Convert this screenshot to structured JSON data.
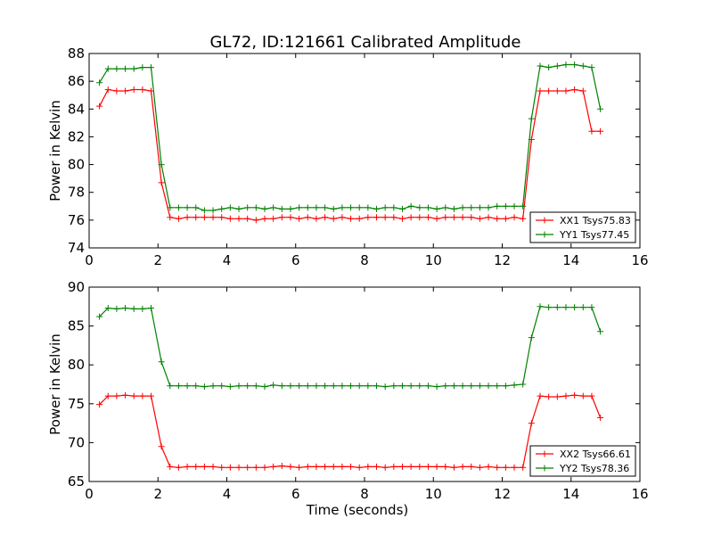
{
  "title": "GL72, ID:121661 Calibrated Amplitude",
  "colors": {
    "red": "#ff0000",
    "green": "#008000"
  },
  "chart_data": [
    {
      "type": "line",
      "title": "GL72, ID:121661 Calibrated Amplitude",
      "xlabel": "",
      "ylabel": "Power in Kelvin",
      "xlim": [
        0,
        16
      ],
      "ylim": [
        74,
        88
      ],
      "xticks": [
        0,
        2,
        4,
        6,
        8,
        10,
        12,
        14,
        16
      ],
      "yticks": [
        74,
        76,
        78,
        80,
        82,
        84,
        86,
        88
      ],
      "grid": false,
      "legend": "lower-right",
      "x": [
        0.3,
        0.55,
        0.8,
        1.05,
        1.3,
        1.55,
        1.8,
        2.1,
        2.35,
        2.6,
        2.85,
        3.1,
        3.35,
        3.6,
        3.85,
        4.1,
        4.35,
        4.6,
        4.85,
        5.1,
        5.35,
        5.6,
        5.85,
        6.1,
        6.35,
        6.6,
        6.85,
        7.1,
        7.35,
        7.6,
        7.85,
        8.1,
        8.35,
        8.6,
        8.85,
        9.1,
        9.35,
        9.6,
        9.85,
        10.1,
        10.35,
        10.6,
        10.85,
        11.1,
        11.35,
        11.6,
        11.85,
        12.1,
        12.35,
        12.6,
        12.85,
        13.1,
        13.35,
        13.6,
        13.85,
        14.1,
        14.35,
        14.6,
        14.85
      ],
      "series": [
        {
          "name": "XX1 Tsys75.83",
          "color": "#ff0000",
          "values": [
            84.2,
            85.4,
            85.3,
            85.3,
            85.4,
            85.4,
            85.3,
            78.7,
            76.2,
            76.1,
            76.2,
            76.2,
            76.2,
            76.2,
            76.2,
            76.1,
            76.1,
            76.1,
            76.0,
            76.1,
            76.1,
            76.2,
            76.2,
            76.1,
            76.2,
            76.1,
            76.2,
            76.1,
            76.2,
            76.1,
            76.1,
            76.2,
            76.2,
            76.2,
            76.2,
            76.1,
            76.2,
            76.2,
            76.2,
            76.1,
            76.2,
            76.2,
            76.2,
            76.2,
            76.1,
            76.2,
            76.1,
            76.1,
            76.2,
            76.1,
            81.8,
            85.3,
            85.3,
            85.3,
            85.3,
            85.4,
            85.3,
            82.4,
            82.4
          ]
        },
        {
          "name": "YY1 Tsys77.45",
          "color": "#008000",
          "values": [
            85.9,
            86.9,
            86.9,
            86.9,
            86.9,
            87.0,
            87.0,
            80.0,
            76.9,
            76.9,
            76.9,
            76.9,
            76.7,
            76.7,
            76.8,
            76.9,
            76.8,
            76.9,
            76.9,
            76.8,
            76.9,
            76.8,
            76.8,
            76.9,
            76.9,
            76.9,
            76.9,
            76.8,
            76.9,
            76.9,
            76.9,
            76.9,
            76.8,
            76.9,
            76.9,
            76.8,
            77.0,
            76.9,
            76.9,
            76.8,
            76.9,
            76.8,
            76.9,
            76.9,
            76.9,
            76.9,
            77.0,
            77.0,
            77.0,
            77.0,
            83.3,
            87.1,
            87.0,
            87.1,
            87.2,
            87.2,
            87.1,
            87.0,
            84.0
          ]
        }
      ]
    },
    {
      "type": "line",
      "title": "",
      "xlabel": "Time (seconds)",
      "ylabel": "Power in Kelvin",
      "xlim": [
        0,
        16
      ],
      "ylim": [
        65,
        90
      ],
      "xticks": [
        0,
        2,
        4,
        6,
        8,
        10,
        12,
        14,
        16
      ],
      "yticks": [
        65,
        70,
        75,
        80,
        85,
        90
      ],
      "grid": false,
      "legend": "lower-right",
      "x": [
        0.3,
        0.55,
        0.8,
        1.05,
        1.3,
        1.55,
        1.8,
        2.1,
        2.35,
        2.6,
        2.85,
        3.1,
        3.35,
        3.6,
        3.85,
        4.1,
        4.35,
        4.6,
        4.85,
        5.1,
        5.35,
        5.6,
        5.85,
        6.1,
        6.35,
        6.6,
        6.85,
        7.1,
        7.35,
        7.6,
        7.85,
        8.1,
        8.35,
        8.6,
        8.85,
        9.1,
        9.35,
        9.6,
        9.85,
        10.1,
        10.35,
        10.6,
        10.85,
        11.1,
        11.35,
        11.6,
        11.85,
        12.1,
        12.35,
        12.6,
        12.85,
        13.1,
        13.35,
        13.6,
        13.85,
        14.1,
        14.35,
        14.6,
        14.85
      ],
      "series": [
        {
          "name": "XX2 Tsys66.61",
          "color": "#ff0000",
          "values": [
            74.9,
            76.0,
            76.0,
            76.1,
            76.0,
            76.0,
            76.0,
            69.5,
            66.9,
            66.8,
            66.9,
            66.9,
            66.9,
            66.9,
            66.8,
            66.8,
            66.8,
            66.8,
            66.8,
            66.8,
            66.9,
            67.0,
            66.9,
            66.8,
            66.9,
            66.9,
            66.9,
            66.9,
            66.9,
            66.9,
            66.8,
            66.9,
            66.9,
            66.8,
            66.9,
            66.9,
            66.9,
            66.9,
            66.9,
            66.9,
            66.9,
            66.8,
            66.9,
            66.9,
            66.8,
            66.9,
            66.8,
            66.8,
            66.8,
            66.8,
            72.5,
            76.0,
            75.9,
            75.9,
            76.0,
            76.1,
            76.0,
            76.0,
            73.2
          ]
        },
        {
          "name": "YY2 Tsys78.36",
          "color": "#008000",
          "values": [
            86.2,
            87.3,
            87.2,
            87.3,
            87.2,
            87.2,
            87.3,
            80.4,
            77.3,
            77.3,
            77.3,
            77.3,
            77.2,
            77.3,
            77.3,
            77.2,
            77.3,
            77.3,
            77.3,
            77.2,
            77.4,
            77.3,
            77.3,
            77.3,
            77.3,
            77.3,
            77.3,
            77.3,
            77.3,
            77.3,
            77.3,
            77.3,
            77.3,
            77.2,
            77.3,
            77.3,
            77.3,
            77.3,
            77.3,
            77.2,
            77.3,
            77.3,
            77.3,
            77.3,
            77.3,
            77.3,
            77.3,
            77.3,
            77.4,
            77.5,
            83.5,
            87.5,
            87.4,
            87.4,
            87.4,
            87.4,
            87.4,
            87.4,
            84.3
          ]
        }
      ]
    }
  ]
}
